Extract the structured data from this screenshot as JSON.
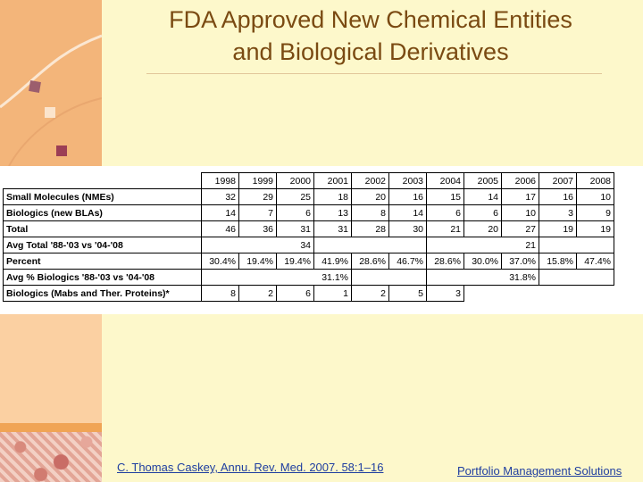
{
  "slide": {
    "title_line1": "FDA Approved New Chemical Entities",
    "title_line2": "and Biological Derivatives",
    "citation": "C. Thomas Caskey, Annu. Rev. Med. 2007. 58:1–16",
    "footer": "Portfolio Management Solutions"
  },
  "table": {
    "years": [
      "1998",
      "1999",
      "2000",
      "2001",
      "2002",
      "2003",
      "2004",
      "2005",
      "2006",
      "2007",
      "2008"
    ],
    "rows": {
      "small_molecules": {
        "label": "Small Molecules (NMEs)",
        "values": [
          "32",
          "29",
          "25",
          "18",
          "20",
          "16",
          "15",
          "14",
          "17",
          "16",
          "10"
        ]
      },
      "biologics": {
        "label": "Biologics (new BLAs)",
        "values": [
          "14",
          "7",
          "6",
          "13",
          "8",
          "14",
          "6",
          "6",
          "10",
          "3",
          "9"
        ]
      },
      "total": {
        "label": "Total",
        "values": [
          "46",
          "36",
          "31",
          "31",
          "28",
          "30",
          "21",
          "20",
          "27",
          "19",
          "19"
        ]
      },
      "avg_total": {
        "label": "Avg Total '88-'03 vs '04-'08",
        "first": "34",
        "second": "21"
      },
      "percent": {
        "label": "Percent",
        "values": [
          "30.4%",
          "19.4%",
          "19.4%",
          "41.9%",
          "28.6%",
          "46.7%",
          "28.6%",
          "30.0%",
          "37.0%",
          "15.8%",
          "47.4%"
        ]
      },
      "avg_pct": {
        "label": "Avg % Biologics '88-'03 vs '04-'08",
        "first": "31.1%",
        "second": "31.8%"
      },
      "mabs": {
        "label": "Biologics (Mabs and Ther. Proteins)*",
        "values": [
          "8",
          "2",
          "6",
          "1",
          "2",
          "5",
          "3"
        ]
      }
    }
  },
  "colors": {
    "title": "#7a4a12",
    "link": "#1f3ea0",
    "background": "#fdf8cb"
  }
}
